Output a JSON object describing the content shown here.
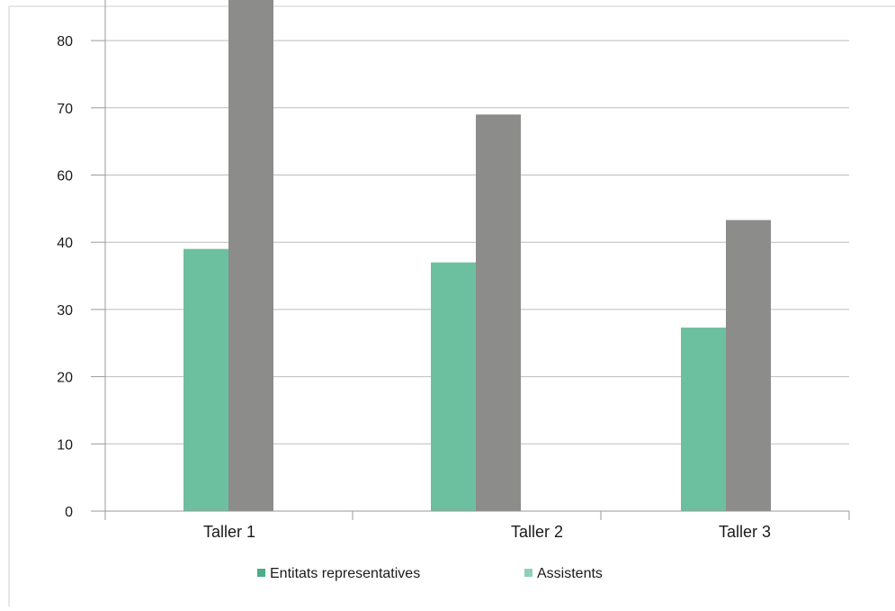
{
  "chart_data": {
    "type": "bar",
    "categories": [
      "Taller 1",
      "Taller 2",
      "Taller 3"
    ],
    "y_tick_labels": [
      "0",
      "10",
      "20",
      "30",
      "40",
      "60",
      "70",
      "80"
    ],
    "grid": true,
    "legend_position": "bottom",
    "series": [
      {
        "name": "Entitats representatives",
        "values": [
          39,
          37,
          27.3
        ],
        "color": "#6cbf9f",
        "legend_color": "#4cad86"
      },
      {
        "name": "Assistents",
        "values": [
          79,
          59,
          43.3
        ],
        "color": "#8c8c8a",
        "legend_color": "#8fd1b8"
      }
    ],
    "xlabel": "",
    "ylabel": "",
    "ylim": [
      0,
      80
    ]
  }
}
